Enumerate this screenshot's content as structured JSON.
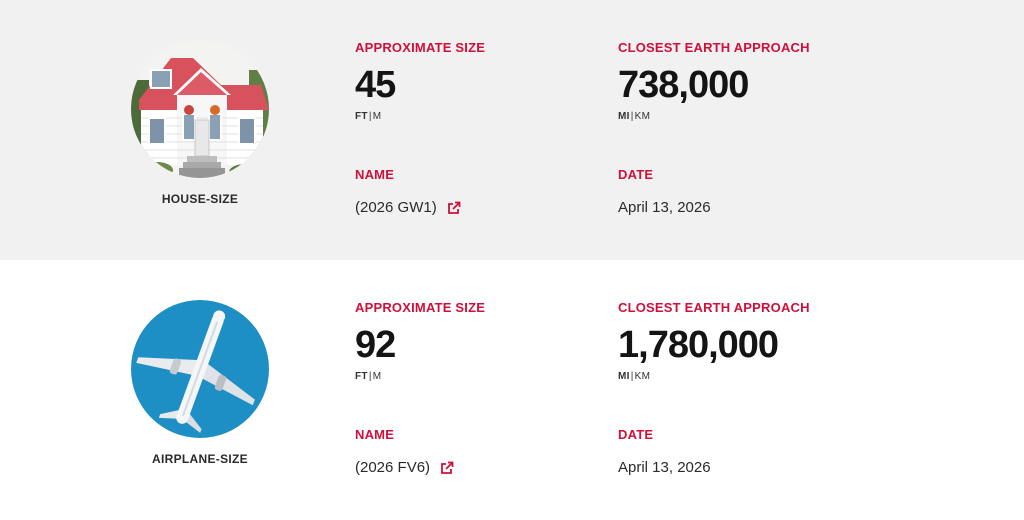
{
  "asteroids": [
    {
      "size_class": "HOUSE-SIZE",
      "image_icon": "house-photo",
      "size_label": "APPROXIMATE SIZE",
      "size_value": "45",
      "size_unit_primary": "FT",
      "size_unit_secondary": "M",
      "approach_label": "CLOSEST EARTH APPROACH",
      "approach_value": "738,000",
      "approach_unit_primary": "MI",
      "approach_unit_secondary": "KM",
      "name_label": "NAME",
      "name_value": "(2026 GW1)",
      "date_label": "DATE",
      "date_value": "April 13, 2026"
    },
    {
      "size_class": "AIRPLANE-SIZE",
      "image_icon": "airplane-photo",
      "size_label": "APPROXIMATE SIZE",
      "size_value": "92",
      "size_unit_primary": "FT",
      "size_unit_secondary": "M",
      "approach_label": "CLOSEST EARTH APPROACH",
      "approach_value": "1,780,000",
      "approach_unit_primary": "MI",
      "approach_unit_secondary": "KM",
      "name_label": "NAME",
      "name_value": "(2026 FV6)",
      "date_label": "DATE",
      "date_value": "April 13, 2026"
    }
  ],
  "colors": {
    "accent": "#d0103a",
    "row_shaded": "#f1f1f1",
    "sky": "#1e8fc4"
  },
  "icons": {
    "external_link": "external-link-icon"
  }
}
